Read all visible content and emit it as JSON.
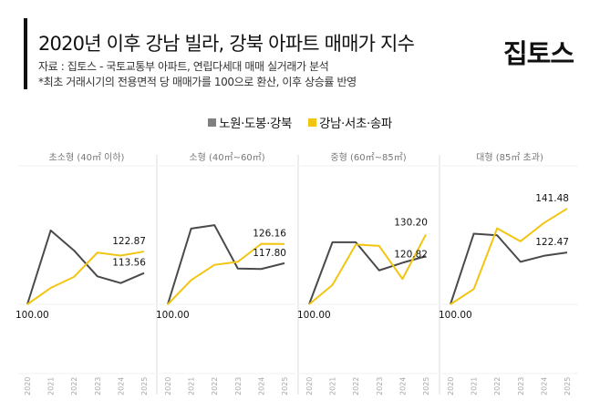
{
  "header": {
    "title": "2020년 이후 강남 빌라, 강북 아파트 매매가 지수",
    "source": "자료 : 집토스 - 국토교통부 아파트, 연립다세대 매매 실거래가 분석",
    "note": "*최초 거래시기의 전용면적 당 매매가를 100으로 환산, 이후 상승률 반영",
    "logo": "집토스"
  },
  "chart_data": {
    "type": "line",
    "x": [
      "2020",
      "2021",
      "2022",
      "2023",
      "2024",
      "2025"
    ],
    "ylim": [
      70,
      160
    ],
    "grid": true,
    "legend_placement": "top",
    "legend": [
      {
        "name": "노원·도봉·강북",
        "color": "#606060"
      },
      {
        "name": "강남·서초·송파",
        "color": "#f2c511"
      }
    ],
    "panels": [
      {
        "title": "초소형 (40㎡ 이하)",
        "series": [
          {
            "name": "노원·도봉·강북",
            "values": [
              100,
              132,
              123.3,
              112.1,
              109.2,
              113.56
            ]
          },
          {
            "name": "강남·서초·송파",
            "values": [
              100,
              107.1,
              111.9,
              122.4,
              121.1,
              122.87
            ]
          }
        ],
        "labels": {
          "start": "100.00",
          "gray_end": "113.56",
          "yellow_end": "122.87"
        }
      },
      {
        "title": "소형 (40㎡~60㎡)",
        "series": [
          {
            "name": "노원·도봉·강북",
            "values": [
              100,
              132.8,
              134.3,
              115.5,
              115.3,
              117.8
            ]
          },
          {
            "name": "강남·서초·송파",
            "values": [
              100,
              110.5,
              117.1,
              118.4,
              126.2,
              126.16
            ]
          }
        ],
        "labels": {
          "start": "100.00",
          "gray_end": "117.80",
          "yellow_end": "126.16"
        }
      },
      {
        "title": "중형 (60㎡~85㎡)",
        "series": [
          {
            "name": "노원·도봉·강북",
            "values": [
              100,
              126.9,
              126.9,
              114.7,
              118,
              120.82
            ]
          },
          {
            "name": "강남·서초·송파",
            "values": [
              100,
              108.4,
              125.9,
              125.3,
              111,
              130.2
            ]
          }
        ],
        "labels": {
          "start": "100.00",
          "gray_end": "120.82",
          "yellow_end": "130.20"
        }
      },
      {
        "title": "대형 (85㎡ 초과)",
        "series": [
          {
            "name": "노원·도봉·강북",
            "values": [
              100,
              130.6,
              129.9,
              118.4,
              121,
              122.47
            ]
          },
          {
            "name": "강남·서초·송파",
            "values": [
              100,
              106.6,
              132.9,
              127.3,
              135.2,
              141.48
            ]
          }
        ],
        "labels": {
          "start": "100.00",
          "gray_end": "122.47",
          "yellow_end": "141.48"
        }
      }
    ]
  }
}
